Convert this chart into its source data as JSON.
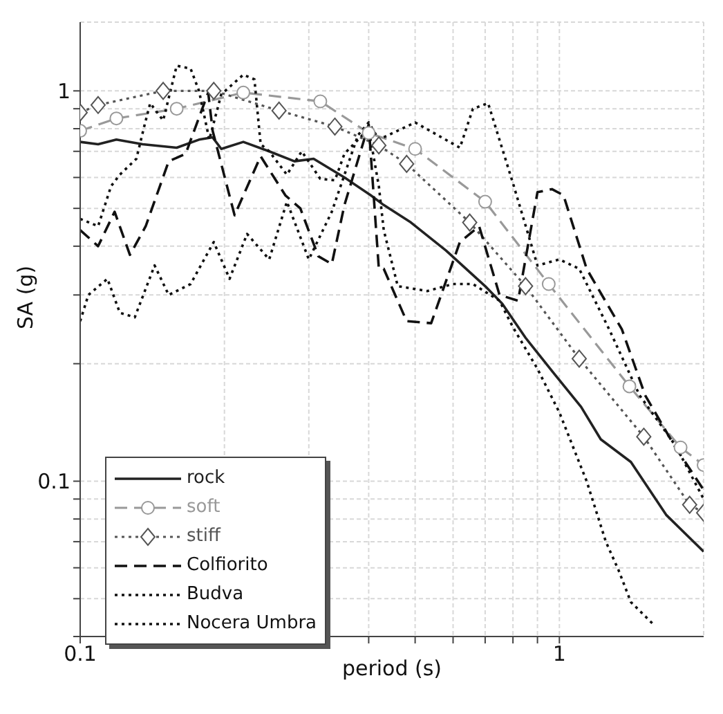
{
  "chart_data": {
    "type": "line",
    "xlabel": "period (s)",
    "ylabel": "SA (g)",
    "log": "xy",
    "xlim": [
      0.1,
      2
    ],
    "ylim": [
      0.04,
      1.5
    ],
    "xticks": [
      0.1,
      {
        "value": 0.2,
        "label": null
      },
      {
        "value": 0.3,
        "label": null
      },
      {
        "value": 0.4,
        "label": null
      },
      {
        "value": 0.5,
        "label": null
      },
      {
        "value": 0.6,
        "label": null
      },
      {
        "value": 0.7,
        "label": null
      },
      {
        "value": 0.8,
        "label": null
      },
      {
        "value": 0.9,
        "label": null
      },
      1
    ],
    "yticks": [
      {
        "value": 0.04,
        "label": null
      },
      {
        "value": 0.05,
        "label": null
      },
      {
        "value": 0.06,
        "label": null
      },
      {
        "value": 0.07,
        "label": null
      },
      {
        "value": 0.08,
        "label": null
      },
      {
        "value": 0.09,
        "label": null
      },
      0.1,
      {
        "value": 0.2,
        "label": null
      },
      {
        "value": 0.3,
        "label": null
      },
      {
        "value": 0.4,
        "label": null
      },
      {
        "value": 0.5,
        "label": null
      },
      {
        "value": 0.6,
        "label": null
      },
      {
        "value": 0.7,
        "label": null
      },
      {
        "value": 0.8,
        "label": null
      },
      {
        "value": 0.9,
        "label": null
      },
      1
    ],
    "grid": true,
    "legend": "bottom left",
    "series": [
      {
        "name": "rock",
        "color": "#222222",
        "line_style": "solid",
        "marker": "none",
        "x": [
          0.1,
          0.109,
          0.119,
          0.135,
          0.159,
          0.177,
          0.189,
          0.197,
          0.219,
          0.248,
          0.28,
          0.307,
          0.356,
          0.404,
          0.43,
          0.49,
          0.58,
          0.7,
          0.76,
          0.85,
          0.97,
          1.11,
          1.22,
          1.41,
          1.67,
          2
        ],
        "values": [
          0.74,
          0.73,
          0.75,
          0.73,
          0.715,
          0.75,
          0.76,
          0.71,
          0.74,
          0.7,
          0.66,
          0.67,
          0.6,
          0.54,
          0.51,
          0.46,
          0.39,
          0.316,
          0.285,
          0.233,
          0.19,
          0.155,
          0.128,
          0.112,
          0.082,
          0.066
        ]
      },
      {
        "name": "soft",
        "color": "#999999",
        "line_style": "dashed",
        "marker": "circle",
        "x": [
          0.1,
          0.119,
          0.159,
          0.219,
          0.317,
          0.4,
          0.5,
          0.7,
          0.95,
          1.4,
          1.79,
          2
        ],
        "values": [
          0.79,
          0.85,
          0.9,
          0.99,
          0.94,
          0.78,
          0.71,
          0.52,
          0.32,
          0.175,
          0.122,
          0.11
        ]
      },
      {
        "name": "stiff",
        "color": "#555555",
        "line_style": "dotted",
        "marker": "diamond",
        "x": [
          0.1,
          0.109,
          0.149,
          0.19,
          0.26,
          0.34,
          0.42,
          0.48,
          0.65,
          0.85,
          1.1,
          1.5,
          1.87,
          2
        ],
        "values": [
          0.88,
          0.92,
          1.0,
          1.0,
          0.89,
          0.81,
          0.725,
          0.65,
          0.46,
          0.316,
          0.206,
          0.13,
          0.087,
          0.083
        ]
      },
      {
        "name": "Colfiorito",
        "color": "#111111",
        "line_style": "dashed",
        "marker": "none",
        "x": [
          0.1,
          0.109,
          0.118,
          0.127,
          0.137,
          0.153,
          0.166,
          0.185,
          0.189,
          0.21,
          0.238,
          0.268,
          0.288,
          0.314,
          0.335,
          0.356,
          0.4,
          0.42,
          0.43,
          0.48,
          0.54,
          0.62,
          0.68,
          0.75,
          0.82,
          0.9,
          0.965,
          1.02,
          1.14,
          1.35,
          1.51,
          1.74,
          2
        ],
        "values": [
          0.44,
          0.4,
          0.49,
          0.38,
          0.45,
          0.66,
          0.69,
          0.99,
          0.79,
          0.48,
          0.68,
          0.54,
          0.5,
          0.377,
          0.36,
          0.51,
          0.82,
          0.35,
          0.35,
          0.257,
          0.254,
          0.41,
          0.45,
          0.3,
          0.29,
          0.55,
          0.56,
          0.54,
          0.35,
          0.245,
          0.166,
          0.123,
          0.095
        ]
      },
      {
        "name": "Budva",
        "color": "#111111",
        "line_style": "dotted",
        "marker": "none",
        "x": [
          0.1,
          0.104,
          0.114,
          0.121,
          0.13,
          0.143,
          0.153,
          0.17,
          0.19,
          0.205,
          0.223,
          0.248,
          0.27,
          0.3,
          0.335,
          0.38,
          0.4,
          0.42,
          0.5,
          0.62,
          0.66,
          0.71,
          0.8,
          0.9,
          1.0,
          1.1,
          1.27,
          1.47,
          1.75,
          2
        ],
        "values": [
          0.257,
          0.3,
          0.33,
          0.27,
          0.263,
          0.357,
          0.3,
          0.32,
          0.41,
          0.33,
          0.43,
          0.37,
          0.52,
          0.37,
          0.49,
          0.77,
          0.83,
          0.75,
          0.83,
          0.715,
          0.9,
          0.93,
          0.58,
          0.357,
          0.37,
          0.35,
          0.245,
          0.166,
          0.123,
          0.09
        ]
      },
      {
        "name": "Nocera Umbra",
        "color": "#111111",
        "line_style": "dotted",
        "marker": "none",
        "x": [
          0.1,
          0.109,
          0.116,
          0.121,
          0.131,
          0.136,
          0.14,
          0.149,
          0.159,
          0.17,
          0.177,
          0.186,
          0.197,
          0.219,
          0.231,
          0.238,
          0.248,
          0.27,
          0.29,
          0.317,
          0.34,
          0.356,
          0.4,
          0.42,
          0.43,
          0.46,
          0.53,
          0.6,
          0.66,
          0.75,
          0.8,
          0.9,
          1.0,
          1.14,
          1.25,
          1.33,
          1.41,
          1.57
        ],
        "values": [
          0.47,
          0.45,
          0.57,
          0.61,
          0.67,
          0.81,
          0.93,
          0.84,
          1.16,
          1.14,
          1.0,
          0.75,
          0.98,
          1.1,
          1.07,
          0.73,
          0.7,
          0.61,
          0.7,
          0.595,
          0.59,
          0.69,
          0.8,
          0.57,
          0.44,
          0.316,
          0.307,
          0.32,
          0.32,
          0.29,
          0.248,
          0.194,
          0.15,
          0.1,
          0.07,
          0.059,
          0.049,
          0.043
        ]
      }
    ]
  }
}
